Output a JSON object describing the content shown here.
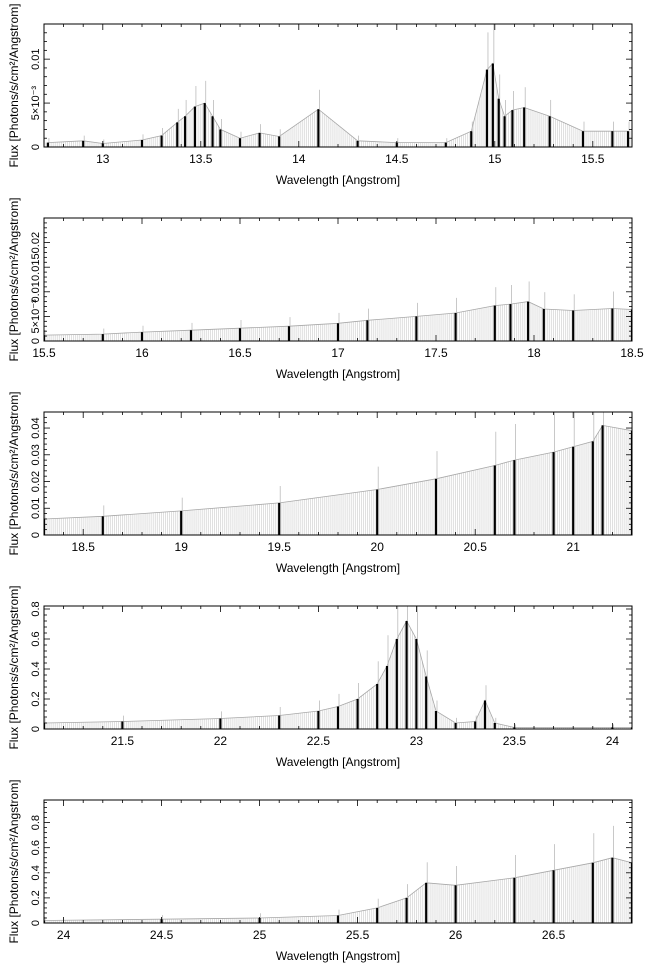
{
  "chart_data": [
    {
      "type": "line",
      "xlabel": "Wavelength [Angstrom]",
      "ylabel": "Flux [Photons/s/cm²/Angstrom]",
      "xlim": [
        12.7,
        15.7
      ],
      "ylim": [
        0,
        0.014
      ],
      "x_ticks": [
        13,
        13.5,
        14,
        14.5,
        15,
        15.5
      ],
      "x_tick_labels": [
        "13",
        "13.5",
        "14",
        "14.5",
        "15",
        "15.5"
      ],
      "y_ticks": [
        0,
        0.005,
        0.01
      ],
      "y_tick_labels": [
        "0",
        "5×10⁻³",
        "0.01"
      ],
      "grid": false,
      "series": [
        {
          "x": [
            12.72,
            12.9,
            13.0,
            13.2,
            13.3,
            13.38,
            13.42,
            13.47,
            13.52,
            13.56,
            13.6,
            13.7,
            13.8,
            13.9,
            14.1,
            14.3,
            14.5,
            14.75,
            14.88,
            14.96,
            14.99,
            15.02,
            15.05,
            15.09,
            15.15,
            15.28,
            15.45,
            15.6,
            15.68
          ],
          "y": [
            0.0005,
            0.0007,
            0.0004,
            0.0008,
            0.0013,
            0.0028,
            0.0035,
            0.0046,
            0.005,
            0.0035,
            0.002,
            0.001,
            0.0016,
            0.0012,
            0.0043,
            0.0007,
            0.0005,
            0.0005,
            0.0018,
            0.0088,
            0.0095,
            0.0055,
            0.0035,
            0.0042,
            0.0045,
            0.0035,
            0.0018,
            0.0018,
            0.0018
          ]
        }
      ]
    },
    {
      "type": "line",
      "xlabel": "Wavelength [Angstrom]",
      "ylabel": "Flux [Photons/s/cm²/Angstrom]",
      "xlim": [
        15.5,
        18.5
      ],
      "ylim": [
        0,
        0.025
      ],
      "x_ticks": [
        15.5,
        16,
        16.5,
        17,
        17.5,
        18,
        18.5
      ],
      "x_tick_labels": [
        "15.5",
        "16",
        "16.5",
        "17",
        "17.5",
        "18",
        "18.5"
      ],
      "y_ticks": [
        0,
        0.005,
        0.01,
        0.015,
        0.02
      ],
      "y_tick_labels": [
        "0",
        "5×10⁻³",
        "0.01",
        "0.015",
        "0.02"
      ],
      "grid": false,
      "series": [
        {
          "x": [
            15.5,
            15.8,
            16.0,
            16.25,
            16.5,
            16.75,
            17.0,
            17.15,
            17.4,
            17.6,
            17.8,
            17.88,
            17.97,
            18.05,
            18.2,
            18.4,
            18.5
          ],
          "y": [
            0.0012,
            0.0014,
            0.0018,
            0.0022,
            0.0026,
            0.003,
            0.0036,
            0.0042,
            0.005,
            0.0057,
            0.0072,
            0.0075,
            0.008,
            0.0065,
            0.0062,
            0.0066,
            0.0064
          ]
        }
      ]
    },
    {
      "type": "line",
      "xlabel": "Wavelength [Angstrom]",
      "ylabel": "Flux [Photons/s/cm²/Angstrom]",
      "xlim": [
        18.3,
        21.3
      ],
      "ylim": [
        0,
        0.046
      ],
      "x_ticks": [
        18.5,
        19,
        19.5,
        20,
        20.5,
        21
      ],
      "x_tick_labels": [
        "18.5",
        "19",
        "19.5",
        "20",
        "20.5",
        "21"
      ],
      "y_ticks": [
        0,
        0.01,
        0.02,
        0.03,
        0.04
      ],
      "y_tick_labels": [
        "0",
        "0.01",
        "0.02",
        "0.03",
        "0.04"
      ],
      "grid": false,
      "series": [
        {
          "x": [
            18.3,
            18.6,
            19.0,
            19.5,
            20.0,
            20.3,
            20.6,
            20.7,
            20.9,
            21.0,
            21.1,
            21.15,
            21.3
          ],
          "y": [
            0.006,
            0.007,
            0.009,
            0.012,
            0.017,
            0.021,
            0.026,
            0.028,
            0.031,
            0.033,
            0.035,
            0.041,
            0.039
          ]
        }
      ]
    },
    {
      "type": "line",
      "xlabel": "Wavelength [Angstrom]",
      "ylabel": "Flux [Photons/s/cm²/Angstrom]",
      "xlim": [
        21.1,
        24.1
      ],
      "ylim": [
        0,
        0.82
      ],
      "x_ticks": [
        21.5,
        22,
        22.5,
        23,
        23.5,
        24
      ],
      "x_tick_labels": [
        "21.5",
        "22",
        "22.5",
        "23",
        "23.5",
        "24"
      ],
      "y_ticks": [
        0,
        0.2,
        0.4,
        0.6,
        0.8
      ],
      "y_tick_labels": [
        "0",
        "0.2",
        "0.4",
        "0.6",
        "0.8"
      ],
      "grid": false,
      "series": [
        {
          "x": [
            21.1,
            21.5,
            22.0,
            22.3,
            22.5,
            22.6,
            22.7,
            22.8,
            22.85,
            22.9,
            22.95,
            23.0,
            23.05,
            23.1,
            23.2,
            23.3,
            23.35,
            23.4,
            23.5,
            24.0,
            24.1
          ],
          "y": [
            0.04,
            0.05,
            0.07,
            0.09,
            0.12,
            0.15,
            0.2,
            0.3,
            0.42,
            0.6,
            0.72,
            0.6,
            0.35,
            0.12,
            0.04,
            0.05,
            0.19,
            0.04,
            0.01,
            0.01,
            0.01
          ]
        }
      ]
    },
    {
      "type": "line",
      "xlabel": "Wavelength [Angstrom]",
      "ylabel": "Flux [Photons/s/cm²/Angstrom]",
      "xlim": [
        23.9,
        26.9
      ],
      "ylim": [
        0,
        0.98
      ],
      "x_ticks": [
        24,
        24.5,
        25,
        25.5,
        26,
        26.5
      ],
      "x_tick_labels": [
        "24",
        "24.5",
        "25",
        "25.5",
        "26",
        "26.5"
      ],
      "y_ticks": [
        0,
        0.2,
        0.4,
        0.6,
        0.8
      ],
      "y_tick_labels": [
        "0",
        "0.2",
        "0.4",
        "0.6",
        "0.8"
      ],
      "grid": false,
      "series": [
        {
          "x": [
            23.9,
            24.5,
            25.0,
            25.4,
            25.6,
            25.75,
            25.85,
            26.0,
            26.3,
            26.5,
            26.7,
            26.8,
            26.9
          ],
          "y": [
            0.02,
            0.03,
            0.04,
            0.06,
            0.12,
            0.2,
            0.32,
            0.3,
            0.36,
            0.42,
            0.48,
            0.52,
            0.48
          ]
        }
      ]
    }
  ],
  "style": {
    "model_color": "#d8d8d8",
    "data_color": "#000000",
    "errorbar_color": "#bbbbbb"
  }
}
